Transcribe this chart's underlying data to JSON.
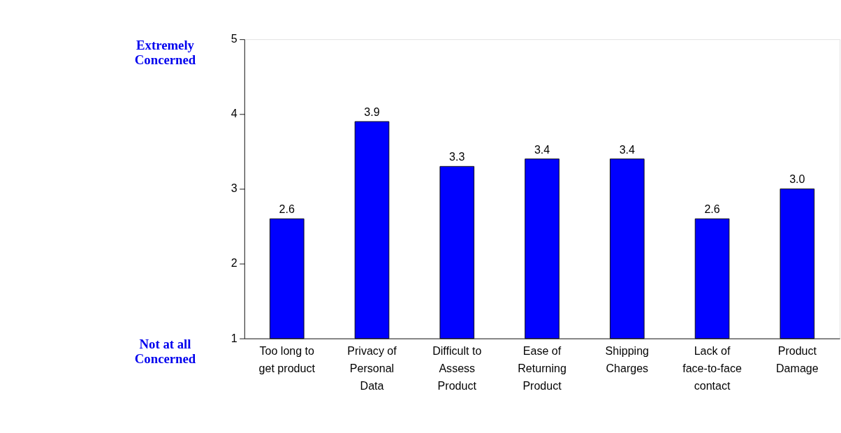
{
  "chart_data": {
    "type": "bar",
    "categories": [
      "Too long to get product",
      "Privacy of Personal Data",
      "Difficult to Assess Product",
      "Ease of Returning Product",
      "Shipping Charges",
      "Lack of face-to-face contact",
      "Product Damage"
    ],
    "values": [
      2.6,
      3.9,
      3.3,
      3.4,
      3.4,
      2.6,
      3.0
    ],
    "value_labels": [
      "2.6",
      "3.9",
      "3.3",
      "3.4",
      "3.4",
      "2.6",
      "3.0"
    ],
    "color": "#0000ff",
    "ylim": [
      1,
      5
    ],
    "yticks": [
      1,
      2,
      3,
      4,
      5
    ],
    "grid": false,
    "annotations": [
      "Extremely Concerned",
      "Not at all Concerned"
    ]
  }
}
